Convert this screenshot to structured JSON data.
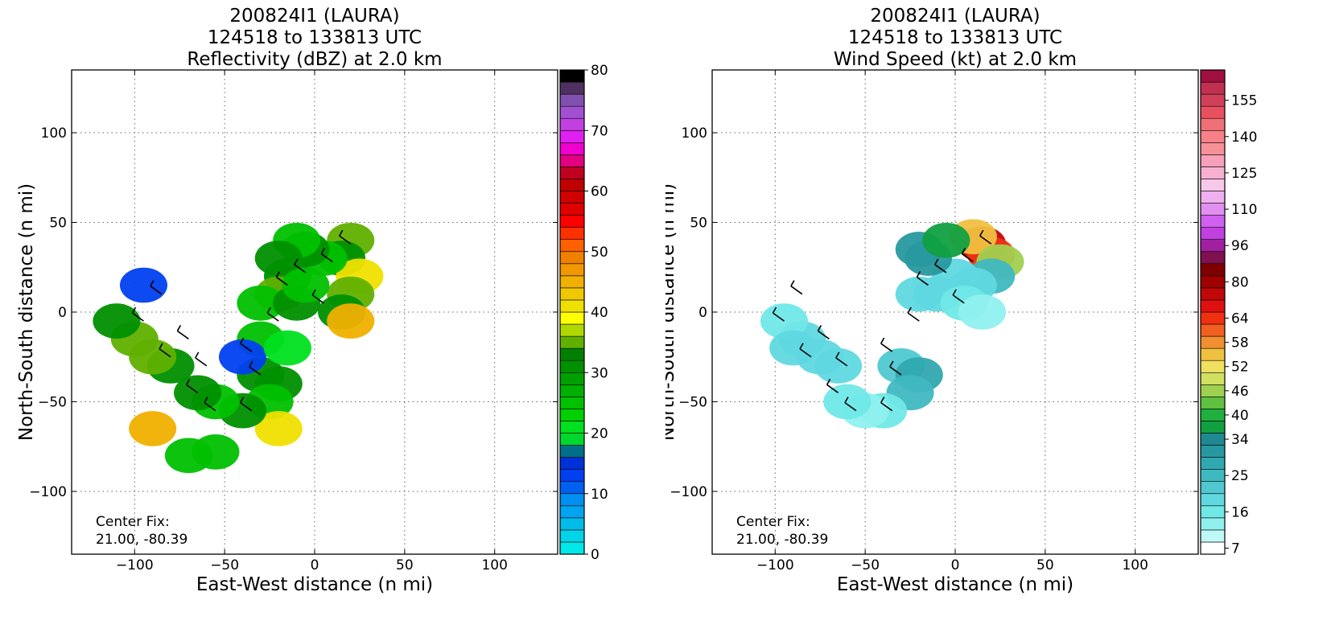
{
  "chart_data": [
    {
      "type": "heatmap",
      "title_lines": [
        "200824I1 (LAURA)",
        "124518 to 133813 UTC",
        "Reflectivity (dBZ) at 2.0 km"
      ],
      "xlabel": "East-West distance (n mi)",
      "ylabel": "North-South distance (n mi)",
      "xlim": [
        -135,
        135
      ],
      "ylim": [
        -135,
        135
      ],
      "x_ticks": [
        -100,
        -50,
        0,
        50,
        100
      ],
      "y_ticks": [
        100,
        50,
        0,
        -50,
        -100
      ],
      "x_tick_labels": [
        "−100",
        "−50",
        "0",
        "50",
        "100"
      ],
      "y_tick_labels": [
        "100",
        "50",
        "0",
        "−50",
        "−100"
      ],
      "grid": true,
      "annotation_lines": [
        "Center Fix:",
        "21.00, -80.39"
      ],
      "colorbar": {
        "min": 0,
        "max": 80,
        "step": 2.5,
        "tick_values": [
          0,
          10,
          20,
          30,
          40,
          50,
          60,
          70,
          80
        ],
        "tick_labels": [
          "0",
          "10",
          "20",
          "30",
          "40",
          "50",
          "60",
          "70",
          "80"
        ],
        "colors": [
          "#00e8e8",
          "#00d4e8",
          "#00bce8",
          "#00a4f0",
          "#0090f0",
          "#0060f0",
          "#0040f0",
          "#0030d8",
          "#00708a",
          "#00d830",
          "#00e020",
          "#00d000",
          "#00c000",
          "#00b000",
          "#00a000",
          "#009000",
          "#008000",
          "#60b000",
          "#b0d800",
          "#ffff00",
          "#f0e000",
          "#f0c800",
          "#f0b000",
          "#f09800",
          "#f08000",
          "#ff6000",
          "#ff3000",
          "#ff0000",
          "#e00000",
          "#d00000",
          "#c00000",
          "#c00020",
          "#e00080",
          "#f000d0",
          "#e020f0",
          "#c040e0",
          "#a050d0",
          "#8050b0",
          "#503060",
          "#000000"
        ]
      },
      "series": [
        {
          "name": "echo",
          "points": [
            [
              20,
              40,
              35
            ],
            [
              15,
              30,
              30
            ],
            [
              25,
              20,
              40
            ],
            [
              20,
              10,
              35
            ],
            [
              15,
              0,
              30
            ],
            [
              20,
              -5,
              45
            ],
            [
              5,
              30,
              25
            ],
            [
              -5,
              35,
              30
            ],
            [
              -10,
              40,
              25
            ],
            [
              -20,
              30,
              30
            ],
            [
              -15,
              20,
              30
            ],
            [
              -20,
              10,
              35
            ],
            [
              -30,
              5,
              25
            ],
            [
              -10,
              5,
              30
            ],
            [
              -5,
              15,
              25
            ],
            [
              -30,
              -15,
              25
            ],
            [
              -30,
              -35,
              30
            ],
            [
              -20,
              -40,
              30
            ],
            [
              -25,
              -50,
              25
            ],
            [
              -20,
              -65,
              40
            ],
            [
              -40,
              -55,
              30
            ],
            [
              -55,
              -50,
              25
            ],
            [
              -65,
              -45,
              30
            ],
            [
              -80,
              -30,
              30
            ],
            [
              -90,
              -25,
              35
            ],
            [
              -100,
              -15,
              35
            ],
            [
              -110,
              -5,
              30
            ],
            [
              -90,
              -65,
              45
            ],
            [
              -70,
              -80,
              25
            ],
            [
              -55,
              -78,
              25
            ],
            [
              -95,
              15,
              12
            ],
            [
              -40,
              -25,
              12
            ],
            [
              -15,
              -20,
              20
            ]
          ]
        }
      ],
      "wind_barbs": [
        [
          20,
          38
        ],
        [
          10,
          28
        ],
        [
          -5,
          22
        ],
        [
          -15,
          15
        ],
        [
          5,
          5
        ],
        [
          -20,
          -5
        ],
        [
          -85,
          10
        ],
        [
          -95,
          -5
        ],
        [
          -70,
          -15
        ],
        [
          -80,
          -25
        ],
        [
          -60,
          -30
        ],
        [
          -35,
          -22
        ],
        [
          -30,
          -35
        ],
        [
          -65,
          -45
        ],
        [
          -55,
          -55
        ],
        [
          -35,
          -55
        ]
      ]
    },
    {
      "type": "heatmap",
      "title_lines": [
        "200824I1 (LAURA)",
        "124518 to 133813 UTC",
        "Wind Speed (kt) at 2.0 km"
      ],
      "xlabel": "East-West distance (n mi)",
      "ylabel": "North-South distance (n mi)",
      "xlim": [
        -135,
        135
      ],
      "ylim": [
        -135,
        135
      ],
      "x_ticks": [
        -100,
        -50,
        0,
        50,
        100
      ],
      "y_ticks": [
        100,
        50,
        0,
        -50,
        -100
      ],
      "x_tick_labels": [
        "−100",
        "−50",
        "0",
        "50",
        "100"
      ],
      "y_tick_labels": [
        "100",
        "50",
        "0",
        "−50",
        "−100"
      ],
      "grid": true,
      "annotation_lines": [
        "Center Fix:",
        "21.00, -80.39"
      ],
      "colorbar": {
        "tick_labels": [
          "7",
          "16",
          "25",
          "34",
          "40",
          "46",
          "52",
          "58",
          "64",
          "80",
          "96",
          "110",
          "125",
          "140",
          "155"
        ],
        "tick_indices": [
          0,
          3,
          6,
          9,
          11,
          13,
          15,
          17,
          19,
          22,
          25,
          28,
          31,
          34,
          37
        ],
        "colors": [
          "#ffffff",
          "#c0f8f8",
          "#90f0f0",
          "#70e8e8",
          "#60d8e0",
          "#50c8d0",
          "#40b8c0",
          "#30a8b0",
          "#2898a0",
          "#208890",
          "#10a040",
          "#20b040",
          "#60c040",
          "#a0d050",
          "#d0e060",
          "#f0e060",
          "#f0c040",
          "#f09030",
          "#f06020",
          "#f03010",
          "#e01010",
          "#c00808",
          "#a00000",
          "#800000",
          "#801050",
          "#a020a0",
          "#c040e0",
          "#d060f0",
          "#e090f0",
          "#f0b0f0",
          "#f8c8e8",
          "#f8b0d0",
          "#f8a0b8",
          "#f89098",
          "#f88088",
          "#f07078",
          "#e85060",
          "#d04058",
          "#c03050",
          "#a01040"
        ]
      },
      "series": [
        {
          "name": "wind",
          "points": [
            [
              15,
              38,
              58
            ],
            [
              20,
              32,
              52
            ],
            [
              10,
              42,
              46
            ],
            [
              25,
              28,
              40
            ],
            [
              20,
              20,
              22
            ],
            [
              10,
              15,
              18
            ],
            [
              0,
              20,
              16
            ],
            [
              -15,
              30,
              28
            ],
            [
              -20,
              35,
              30
            ],
            [
              -5,
              40,
              34
            ],
            [
              -10,
              10,
              16
            ],
            [
              -20,
              10,
              18
            ],
            [
              5,
              5,
              14
            ],
            [
              15,
              0,
              12
            ],
            [
              -85,
              -15,
              16
            ],
            [
              -95,
              -5,
              14
            ],
            [
              -75,
              -25,
              18
            ],
            [
              -65,
              -30,
              16
            ],
            [
              -30,
              -30,
              20
            ],
            [
              -20,
              -35,
              25
            ],
            [
              -25,
              -45,
              22
            ],
            [
              -40,
              -55,
              14
            ],
            [
              -50,
              -55,
              12
            ],
            [
              -60,
              -50,
              14
            ],
            [
              -90,
              -20,
              16
            ]
          ]
        }
      ],
      "wind_barbs": [
        [
          20,
          38
        ],
        [
          10,
          28
        ],
        [
          -5,
          22
        ],
        [
          -15,
          15
        ],
        [
          5,
          5
        ],
        [
          -20,
          -5
        ],
        [
          -85,
          10
        ],
        [
          -95,
          -5
        ],
        [
          -70,
          -15
        ],
        [
          -80,
          -25
        ],
        [
          -60,
          -30
        ],
        [
          -35,
          -22
        ],
        [
          -30,
          -35
        ],
        [
          -65,
          -45
        ],
        [
          -55,
          -55
        ],
        [
          -35,
          -55
        ]
      ]
    }
  ]
}
